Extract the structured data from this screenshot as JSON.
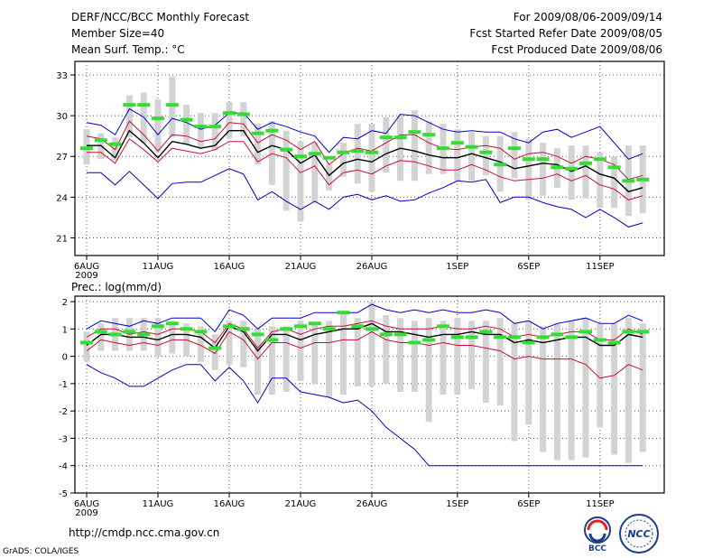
{
  "header": {
    "title": "DERF/NCC/BCC Monthly Forecast",
    "member_size": "Member Size=40",
    "variable": "Mean Surf. Temp.: °C",
    "period": "For 2009/08/06-2009/09/14",
    "started": "Fcst Started Refer Date 2009/08/05",
    "produced": "Fcst Produced Date 2009/08/06"
  },
  "footer": {
    "url": "http://cmdp.ncc.cma.gov.cn",
    "grads": "GrADS: COLA/IGES",
    "logo_left": "BCC",
    "logo_right": "NCC"
  },
  "colors": {
    "ensemble_mean": "#000000",
    "spread": "#c8102e",
    "extremes": "#0000cc",
    "bars": "#d3d3d3",
    "markers": "#33dd33"
  },
  "chart_data": [
    {
      "type": "line",
      "title": "Mean Surf. Temp.: °C",
      "ylim": [
        19.7,
        34
      ],
      "yticks": [
        21,
        24,
        27,
        30,
        33
      ],
      "x_ticks": [
        {
          "day": 0,
          "label": "6AUG",
          "sub": "2009"
        },
        {
          "day": 5,
          "label": "11AUG"
        },
        {
          "day": 10,
          "label": "16AUG"
        },
        {
          "day": 15,
          "label": "21AUG"
        },
        {
          "day": 20,
          "label": "26AUG"
        },
        {
          "day": 26,
          "label": "1SEP"
        },
        {
          "day": 31,
          "label": "6SEP"
        },
        {
          "day": 36,
          "label": "11SEP"
        }
      ],
      "x": [
        0,
        1,
        2,
        3,
        4,
        5,
        6,
        7,
        8,
        9,
        10,
        11,
        12,
        13,
        14,
        15,
        16,
        17,
        18,
        19,
        20,
        21,
        22,
        23,
        24,
        25,
        26,
        27,
        28,
        29,
        30,
        31,
        32,
        33,
        34,
        35,
        36,
        37,
        38,
        39
      ],
      "series": [
        {
          "name": "max",
          "color": "blue",
          "values": [
            29.5,
            29.3,
            28.6,
            30.5,
            29.9,
            28.6,
            29.8,
            29.5,
            29.0,
            29.3,
            30.2,
            30.2,
            29.0,
            29.5,
            29.2,
            28.8,
            28.5,
            27.3,
            28.4,
            28.3,
            28.9,
            28.7,
            30.1,
            30.0,
            29.5,
            29.0,
            28.8,
            28.9,
            28.8,
            28.8,
            28.3,
            28.0,
            28.8,
            29.0,
            28.4,
            28.8,
            29.2,
            28.0,
            26.8,
            27.2
          ]
        },
        {
          "name": "spread_upper",
          "color": "red",
          "values": [
            28.5,
            28.3,
            27.5,
            29.6,
            28.6,
            27.4,
            28.6,
            28.5,
            28.1,
            28.3,
            29.5,
            29.4,
            28.0,
            28.6,
            28.2,
            27.5,
            28.1,
            26.4,
            27.2,
            27.6,
            27.4,
            28.0,
            28.6,
            28.6,
            28.0,
            27.6,
            27.5,
            27.7,
            27.8,
            27.6,
            26.8,
            27.2,
            27.3,
            27.0,
            26.5,
            27.0,
            26.8,
            26.4,
            25.3,
            25.6
          ]
        },
        {
          "name": "ensemble_mean",
          "color": "black",
          "values": [
            27.8,
            27.8,
            26.9,
            28.9,
            28.0,
            26.9,
            28.1,
            27.9,
            27.6,
            27.8,
            28.9,
            28.9,
            27.3,
            27.8,
            27.5,
            26.5,
            27.1,
            25.6,
            26.5,
            26.8,
            26.6,
            27.2,
            27.6,
            27.4,
            27.1,
            26.9,
            26.9,
            27.2,
            26.9,
            26.6,
            26.1,
            26.3,
            26.5,
            26.4,
            25.9,
            26.3,
            25.7,
            25.4,
            24.4,
            24.7
          ]
        },
        {
          "name": "spread_lower",
          "color": "red",
          "values": [
            27.3,
            27.3,
            26.5,
            28.3,
            27.5,
            26.6,
            27.6,
            27.4,
            27.2,
            27.5,
            28.1,
            28.1,
            26.6,
            27.2,
            26.9,
            25.8,
            26.3,
            24.9,
            25.8,
            26.0,
            25.7,
            26.3,
            26.7,
            26.6,
            26.3,
            26.0,
            26.0,
            26.4,
            26.0,
            25.5,
            25.2,
            25.3,
            25.4,
            25.7,
            25.2,
            25.6,
            24.9,
            24.6,
            23.8,
            24.1
          ]
        },
        {
          "name": "min",
          "color": "blue",
          "values": [
            25.8,
            25.8,
            24.9,
            25.9,
            24.9,
            23.9,
            25.0,
            25.1,
            25.1,
            25.6,
            26.1,
            25.7,
            23.8,
            24.4,
            23.7,
            23.1,
            23.7,
            23.1,
            24.0,
            24.2,
            23.8,
            24.1,
            23.7,
            23.8,
            24.3,
            24.7,
            25.2,
            25.1,
            25.3,
            23.6,
            24.0,
            24.0,
            23.6,
            23.3,
            23.1,
            22.5,
            23.1,
            22.5,
            21.8,
            22.1
          ]
        }
      ],
      "bars": [
        {
          "lo": 26.4,
          "hi": 29.0
        },
        {
          "lo": 26.8,
          "hi": 28.7
        },
        {
          "lo": 26.7,
          "hi": 28.4
        },
        {
          "lo": 28.4,
          "hi": 31.5
        },
        {
          "lo": 28.0,
          "hi": 31.7
        },
        {
          "lo": 27.3,
          "hi": 31.2
        },
        {
          "lo": 28.4,
          "hi": 32.9
        },
        {
          "lo": 27.9,
          "hi": 30.8
        },
        {
          "lo": 27.6,
          "hi": 30.2
        },
        {
          "lo": 27.4,
          "hi": 30.2
        },
        {
          "lo": 28.3,
          "hi": 31.0
        },
        {
          "lo": 28.5,
          "hi": 31.0
        },
        {
          "lo": 26.4,
          "hi": 29.4
        },
        {
          "lo": 24.9,
          "hi": 29.6
        },
        {
          "lo": 23.0,
          "hi": 28.9
        },
        {
          "lo": 22.2,
          "hi": 28.1
        },
        {
          "lo": 23.6,
          "hi": 28.0
        },
        {
          "lo": 24.5,
          "hi": 26.4
        },
        {
          "lo": 25.5,
          "hi": 28.0
        },
        {
          "lo": 25.0,
          "hi": 29.4
        },
        {
          "lo": 24.4,
          "hi": 29.4
        },
        {
          "lo": 25.8,
          "hi": 29.9
        },
        {
          "lo": 25.2,
          "hi": 30.0
        },
        {
          "lo": 25.2,
          "hi": 30.4
        },
        {
          "lo": 25.7,
          "hi": 29.6
        },
        {
          "lo": 25.7,
          "hi": 29.4
        },
        {
          "lo": 25.2,
          "hi": 29.0
        },
        {
          "lo": 25.2,
          "hi": 28.8
        },
        {
          "lo": 25.6,
          "hi": 28.5
        },
        {
          "lo": 24.4,
          "hi": 28.5
        },
        {
          "lo": 25.4,
          "hi": 28.8
        },
        {
          "lo": 23.8,
          "hi": 28.3
        },
        {
          "lo": 24.1,
          "hi": 28.0
        },
        {
          "lo": 24.7,
          "hi": 27.6
        },
        {
          "lo": 23.8,
          "hi": 27.8
        },
        {
          "lo": 23.9,
          "hi": 27.8
        },
        {
          "lo": 23.2,
          "hi": 27.3
        },
        {
          "lo": 23.2,
          "hi": 27.0
        },
        {
          "lo": 22.6,
          "hi": 27.8
        },
        {
          "lo": 22.8,
          "hi": 27.8
        }
      ],
      "markers": [
        27.6,
        28.2,
        27.9,
        30.8,
        30.8,
        29.8,
        30.8,
        29.7,
        29.2,
        29.2,
        30.2,
        30.1,
        28.7,
        28.9,
        27.5,
        27.0,
        27.2,
        26.9,
        27.3,
        27.4,
        27.3,
        28.4,
        28.4,
        28.8,
        28.6,
        27.6,
        28.0,
        27.7,
        27.3,
        26.4,
        27.6,
        26.8,
        26.8,
        26.2,
        26.1,
        26.5,
        26.8,
        26.2,
        25.2,
        25.3
      ]
    },
    {
      "type": "line",
      "title": "Prec.: log(mm/d)",
      "ylim": [
        -5,
        2.2
      ],
      "yticks": [
        -5,
        -4,
        -3,
        -2,
        -1,
        0,
        1,
        2
      ],
      "x_ticks": [
        {
          "day": 0,
          "label": "6AUG",
          "sub": "2009"
        },
        {
          "day": 5,
          "label": "11AUG"
        },
        {
          "day": 10,
          "label": "16AUG"
        },
        {
          "day": 15,
          "label": "21AUG"
        },
        {
          "day": 20,
          "label": "26AUG"
        },
        {
          "day": 26,
          "label": "1SEP"
        },
        {
          "day": 31,
          "label": "6SEP"
        },
        {
          "day": 36,
          "label": "11SEP"
        }
      ],
      "x": [
        0,
        1,
        2,
        3,
        4,
        5,
        6,
        7,
        8,
        9,
        10,
        11,
        12,
        13,
        14,
        15,
        16,
        17,
        18,
        19,
        20,
        21,
        22,
        23,
        24,
        25,
        26,
        27,
        28,
        29,
        30,
        31,
        32,
        33,
        34,
        35,
        36,
        37,
        38,
        39
      ],
      "series": [
        {
          "name": "max",
          "color": "blue",
          "values": [
            1.0,
            1.3,
            1.2,
            1.1,
            1.3,
            1.2,
            1.4,
            1.4,
            1.4,
            0.9,
            1.7,
            1.5,
            1.0,
            1.4,
            1.4,
            1.4,
            1.6,
            1.6,
            1.6,
            1.6,
            1.9,
            1.7,
            1.6,
            1.7,
            1.6,
            1.7,
            1.6,
            1.6,
            1.7,
            1.6,
            1.2,
            1.3,
            1.0,
            1.2,
            1.3,
            1.4,
            1.2,
            1.2,
            1.5,
            1.3
          ]
        },
        {
          "name": "spread_upper",
          "color": "red",
          "values": [
            0.7,
            1.0,
            1.0,
            0.8,
            0.9,
            0.8,
            1.0,
            1.0,
            0.9,
            0.5,
            1.2,
            1.0,
            0.3,
            0.9,
            1.0,
            0.8,
            1.0,
            1.1,
            1.1,
            1.2,
            1.3,
            1.1,
            1.0,
            1.0,
            1.0,
            1.1,
            1.0,
            1.0,
            1.1,
            1.0,
            0.7,
            0.8,
            0.7,
            0.8,
            0.9,
            0.9,
            0.6,
            0.6,
            1.0,
            0.8
          ]
        },
        {
          "name": "ensemble_mean",
          "color": "black",
          "values": [
            0.4,
            0.8,
            0.8,
            0.7,
            0.7,
            0.6,
            0.8,
            0.8,
            0.7,
            0.3,
            1.1,
            0.9,
            0.2,
            0.8,
            0.8,
            0.6,
            0.8,
            0.9,
            1.0,
            1.0,
            1.2,
            0.9,
            0.9,
            0.8,
            0.7,
            0.8,
            0.8,
            0.9,
            0.8,
            0.8,
            0.5,
            0.6,
            0.5,
            0.6,
            0.7,
            0.7,
            0.4,
            0.4,
            0.8,
            0.7
          ]
        },
        {
          "name": "spread_lower",
          "color": "red",
          "values": [
            0.2,
            0.6,
            0.5,
            0.4,
            0.5,
            0.4,
            0.6,
            0.6,
            0.4,
            0.1,
            0.9,
            0.6,
            -0.1,
            0.5,
            0.5,
            0.3,
            0.5,
            0.5,
            0.6,
            0.6,
            0.9,
            0.6,
            0.5,
            0.5,
            0.4,
            0.5,
            0.4,
            0.4,
            0.3,
            0.2,
            -0.1,
            0.0,
            -0.1,
            -0.1,
            -0.1,
            -0.3,
            -0.8,
            -0.7,
            -0.3,
            -0.5
          ]
        },
        {
          "name": "min",
          "color": "blue",
          "values": [
            -0.3,
            -0.6,
            -0.8,
            -1.1,
            -1.1,
            -0.8,
            -0.5,
            -0.3,
            -0.3,
            -0.9,
            -0.4,
            -0.9,
            -1.7,
            -0.8,
            -0.8,
            -1.3,
            -1.4,
            -1.5,
            -1.7,
            -1.6,
            -2.0,
            -2.6,
            -3.0,
            -3.4,
            -4.0,
            -4.0,
            -4.0,
            -4.0,
            -4.0,
            -4.0,
            -4.0,
            -4.0,
            -4.0,
            -4.0,
            -4.0,
            -4.0,
            -4.0,
            -4.0,
            -4.0,
            -4.0
          ]
        }
      ],
      "bars": [
        {
          "lo": -0.2,
          "hi": 0.9
        },
        {
          "lo": 0.2,
          "hi": 1.2
        },
        {
          "lo": 0.2,
          "hi": 1.4
        },
        {
          "lo": 0.2,
          "hi": 1.4
        },
        {
          "lo": 0.2,
          "hi": 1.4
        },
        {
          "lo": 0.0,
          "hi": 1.4
        },
        {
          "lo": 0.1,
          "hi": 1.3
        },
        {
          "lo": 0.0,
          "hi": 1.2
        },
        {
          "lo": -0.2,
          "hi": 1.1
        },
        {
          "lo": -0.5,
          "hi": 0.8
        },
        {
          "lo": -0.3,
          "hi": 1.3
        },
        {
          "lo": -0.4,
          "hi": 1.3
        },
        {
          "lo": -1.4,
          "hi": 1.0
        },
        {
          "lo": -1.4,
          "hi": 1.1
        },
        {
          "lo": -1.3,
          "hi": 1.1
        },
        {
          "lo": -0.9,
          "hi": 1.3
        },
        {
          "lo": -1.0,
          "hi": 1.2
        },
        {
          "lo": -1.5,
          "hi": 1.3
        },
        {
          "lo": -1.4,
          "hi": 1.6
        },
        {
          "lo": -1.1,
          "hi": 1.4
        },
        {
          "lo": -1.1,
          "hi": 2.0
        },
        {
          "lo": -1.0,
          "hi": 1.5
        },
        {
          "lo": -1.3,
          "hi": 1.4
        },
        {
          "lo": -1.3,
          "hi": 1.3
        },
        {
          "lo": -2.4,
          "hi": 1.4
        },
        {
          "lo": -1.4,
          "hi": 1.3
        },
        {
          "lo": -1.4,
          "hi": 1.4
        },
        {
          "lo": -1.2,
          "hi": 1.3
        },
        {
          "lo": -1.7,
          "hi": 1.3
        },
        {
          "lo": -1.8,
          "hi": 1.4
        },
        {
          "lo": -3.1,
          "hi": 1.2
        },
        {
          "lo": -2.5,
          "hi": 1.3
        },
        {
          "lo": -3.5,
          "hi": 1.1
        },
        {
          "lo": -3.8,
          "hi": 1.2
        },
        {
          "lo": -3.8,
          "hi": 1.3
        },
        {
          "lo": -3.7,
          "hi": 1.4
        },
        {
          "lo": -2.6,
          "hi": 1.2
        },
        {
          "lo": -3.6,
          "hi": 1.2
        },
        {
          "lo": -3.9,
          "hi": 1.4
        },
        {
          "lo": -3.5,
          "hi": 1.2
        }
      ],
      "markers": [
        0.5,
        0.9,
        0.8,
        0.9,
        0.8,
        1.1,
        1.2,
        1.0,
        0.9,
        0.3,
        1.1,
        1.0,
        0.8,
        0.6,
        1.0,
        1.1,
        1.2,
        1.0,
        1.6,
        1.1,
        1.0,
        0.8,
        0.8,
        0.5,
        0.6,
        1.1,
        0.7,
        0.7,
        0.9,
        0.7,
        0.7,
        0.5,
        0.7,
        0.8,
        0.7,
        0.9,
        0.6,
        0.5,
        0.9,
        0.9
      ]
    }
  ]
}
